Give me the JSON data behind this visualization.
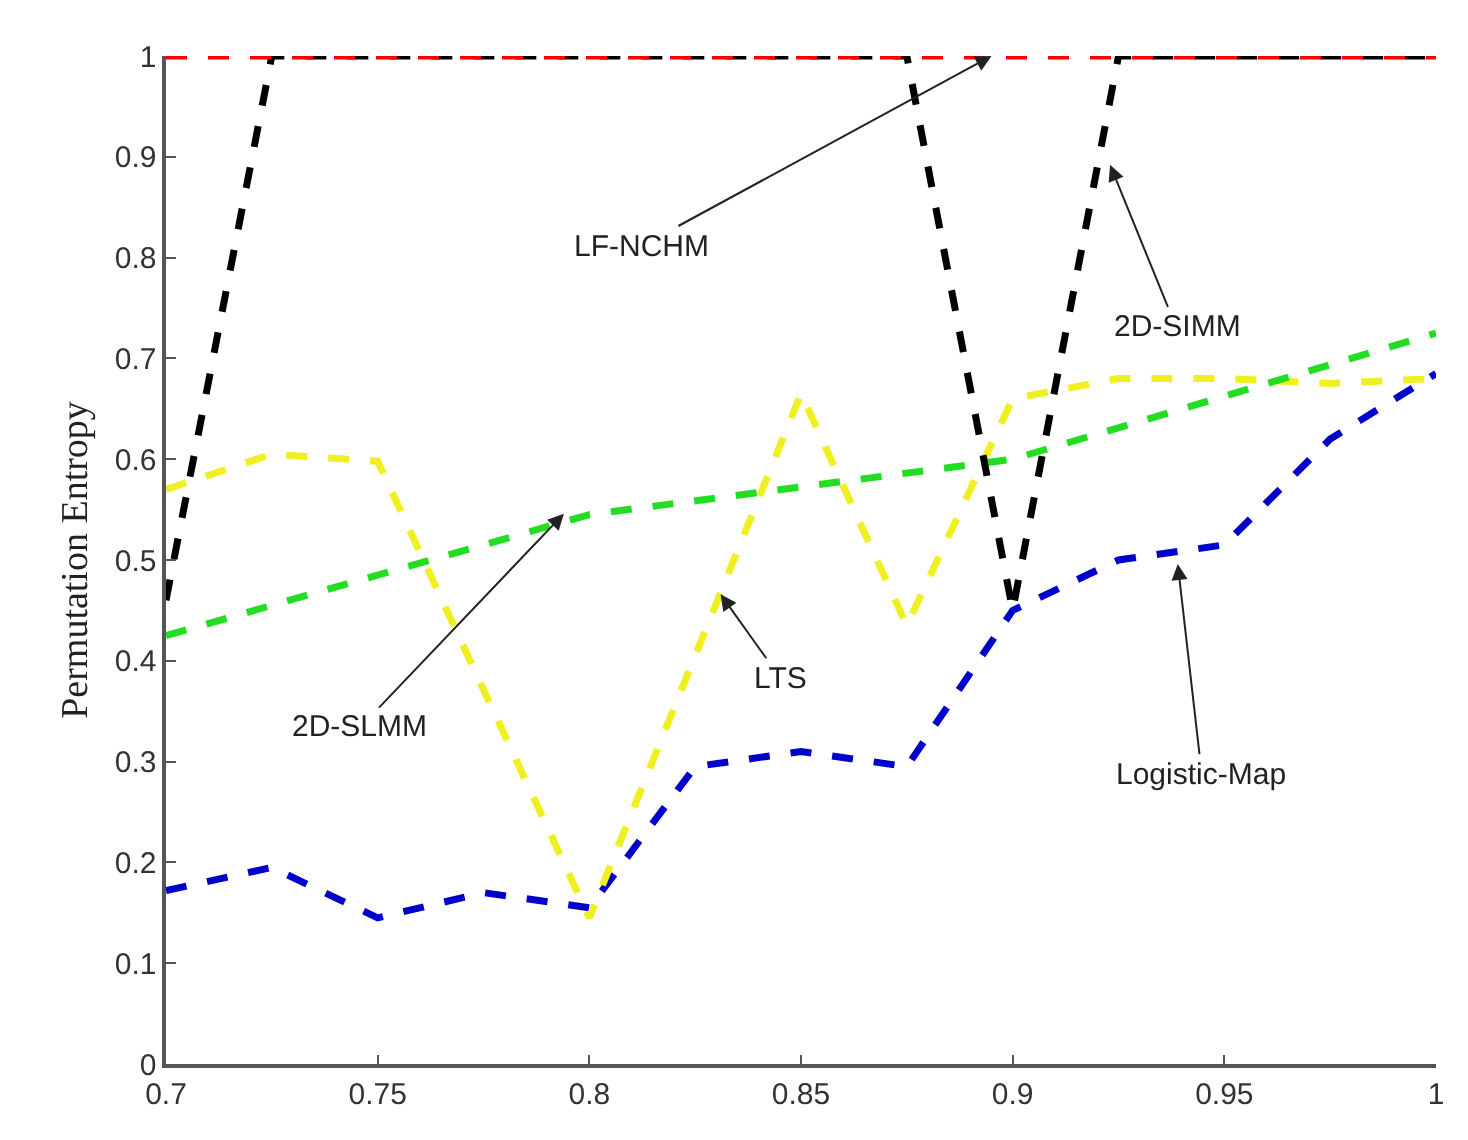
{
  "chart_data": {
    "type": "line",
    "ylabel": "Permutation Entropy",
    "xlim": [
      0.7,
      1
    ],
    "xticks": [
      0.7,
      0.75,
      0.8,
      0.85,
      0.9,
      0.95,
      1
    ],
    "ylim": [
      0,
      1
    ],
    "yticks": [
      0,
      0.1,
      0.2,
      0.3,
      0.4,
      0.5,
      0.6,
      0.7,
      0.8,
      0.9,
      1
    ],
    "marker": "none",
    "line_style": "dashed",
    "series": [
      {
        "color": "#0000cc",
        "x": [
          0.7,
          0.725,
          0.75,
          0.775,
          0.8,
          0.825,
          0.85,
          0.875,
          0.9,
          0.925,
          0.95,
          0.975,
          1
        ],
        "values": [
          0.172,
          0.195,
          0.145,
          0.17,
          0.155,
          0.295,
          0.31,
          0.295,
          0.45,
          0.5,
          0.515,
          0.62,
          0.685
        ]
      },
      {
        "color": "#f0f020",
        "x": [
          0.7,
          0.725,
          0.75,
          0.8,
          0.85,
          0.875,
          0.9,
          0.925,
          0.95,
          0.975,
          1
        ],
        "values": [
          0.57,
          0.605,
          0.598,
          0.145,
          0.665,
          0.435,
          0.66,
          0.68,
          0.68,
          0.675,
          0.68
        ]
      },
      {
        "color": "#22dd22",
        "x": [
          0.7,
          0.8,
          0.9,
          1
        ],
        "values": [
          0.425,
          0.545,
          0.6,
          0.725
        ]
      },
      {
        "color": "#000000",
        "x": [
          0.7,
          0.725,
          0.875,
          0.9,
          0.925,
          1
        ],
        "values": [
          0.46,
          1,
          1,
          0.45,
          1,
          1
        ]
      },
      {
        "color": "#ff0000",
        "x": [
          0.7,
          1
        ],
        "values": [
          1,
          1
        ]
      }
    ],
    "annotations": [
      {
        "text": "LF-NCHM",
        "x": 0.895,
        "y": 1.0
      },
      {
        "text": "2D-SIMM",
        "x": 0.923,
        "y": 0.892
      },
      {
        "text": "2D-SLMM",
        "x": 0.794,
        "y": 0.546
      },
      {
        "text": "LTS",
        "x": 0.831,
        "y": 0.466
      },
      {
        "text": "Logistic-Map",
        "x": 0.939,
        "y": 0.496
      }
    ]
  }
}
